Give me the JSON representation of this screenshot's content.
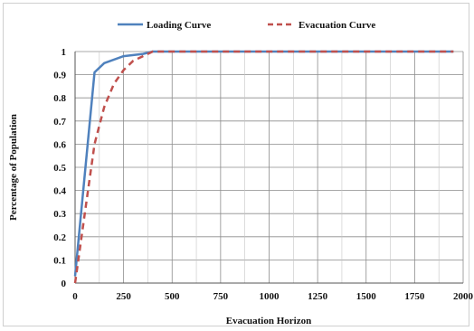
{
  "chart_data": {
    "type": "line",
    "title": "",
    "xlabel": "Evacuation Horizon",
    "ylabel": "Percentage of Population",
    "xlim": [
      0,
      2000
    ],
    "ylim": [
      0,
      1
    ],
    "xticks": [
      "0",
      "250",
      "500",
      "750",
      "1000",
      "1250",
      "1500",
      "1750",
      "2000"
    ],
    "yticks": [
      "0",
      "0.1",
      "0.2",
      "0.3",
      "0.4",
      "0.5",
      "0.6",
      "0.7",
      "0.8",
      "0.9",
      "1"
    ],
    "grid": true,
    "legend_position": "top",
    "series": [
      {
        "name": "Loading Curve",
        "color": "#4f81bd",
        "dash": "solid",
        "x": [
          0,
          100,
          150,
          250,
          350,
          400,
          500,
          1000,
          1500,
          1950
        ],
        "y": [
          0.03,
          0.91,
          0.95,
          0.98,
          0.99,
          1.0,
          1.0,
          1.0,
          1.0,
          1.0
        ]
      },
      {
        "name": "Evacuation Curve",
        "color": "#c0504d",
        "dash": "dashed",
        "x": [
          0,
          25,
          50,
          75,
          100,
          125,
          150,
          200,
          250,
          300,
          350,
          400,
          500,
          1000,
          1500,
          1950
        ],
        "y": [
          0.0,
          0.15,
          0.3,
          0.45,
          0.6,
          0.68,
          0.76,
          0.86,
          0.92,
          0.96,
          0.98,
          1.0,
          1.0,
          1.0,
          1.0,
          1.0
        ]
      }
    ]
  }
}
